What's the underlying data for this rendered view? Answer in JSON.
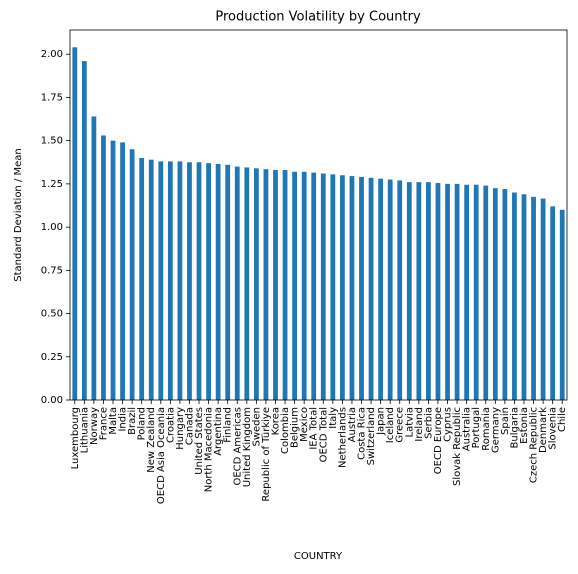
{
  "chart_data": {
    "type": "bar",
    "title": "Production Volatility by Country",
    "xlabel": "COUNTRY",
    "ylabel": "Standard Deviation / Mean",
    "color": "#1f77b4",
    "categories": [
      "Luxembourg",
      "Lithuania",
      "Norway",
      "France",
      "Malta",
      "India",
      "Brazil",
      "Poland",
      "New Zealand",
      "OECD Asia Oceania",
      "Croatia",
      "Hungary",
      "Canada",
      "United States",
      "North Macedonia",
      "Argentina",
      "Finland",
      "OECD Americas",
      "United Kingdom",
      "Sweden",
      "Republic of Türkiye",
      "Korea",
      "Colombia",
      "Belgium",
      "Mexico",
      "IEA Total",
      "OECD Total",
      "Italy",
      "Netherlands",
      "Austria",
      "Costa Rica",
      "Switzerland",
      "Japan",
      "Iceland",
      "Greece",
      "Latvia",
      "Ireland",
      "Serbia",
      "OECD Europe",
      "Cyprus",
      "Slovak Republic",
      "Australia",
      "Portugal",
      "Romania",
      "Germany",
      "Spain",
      "Bulgaria",
      "Estonia",
      "Czech Republic",
      "Denmark",
      "Slovenia",
      "Chile"
    ],
    "values": [
      2.04,
      1.96,
      1.64,
      1.53,
      1.5,
      1.49,
      1.45,
      1.4,
      1.39,
      1.38,
      1.38,
      1.38,
      1.375,
      1.375,
      1.37,
      1.365,
      1.36,
      1.35,
      1.345,
      1.34,
      1.335,
      1.33,
      1.33,
      1.32,
      1.32,
      1.315,
      1.31,
      1.305,
      1.3,
      1.295,
      1.29,
      1.285,
      1.28,
      1.275,
      1.27,
      1.26,
      1.26,
      1.26,
      1.255,
      1.25,
      1.25,
      1.245,
      1.245,
      1.24,
      1.225,
      1.22,
      1.2,
      1.19,
      1.175,
      1.165,
      1.12,
      1.1
    ],
    "ylim": [
      0,
      2.14
    ],
    "yticks": [
      {
        "value": 0,
        "label": "0.00"
      },
      {
        "value": 0.25,
        "label": "0.25"
      },
      {
        "value": 0.5,
        "label": "0.50"
      },
      {
        "value": 0.75,
        "label": "0.75"
      },
      {
        "value": 1,
        "label": "1.00"
      },
      {
        "value": 1.25,
        "label": "1.25"
      },
      {
        "value": 1.5,
        "label": "1.50"
      },
      {
        "value": 1.75,
        "label": "1.75"
      },
      {
        "value": 2,
        "label": "2.00"
      }
    ]
  }
}
